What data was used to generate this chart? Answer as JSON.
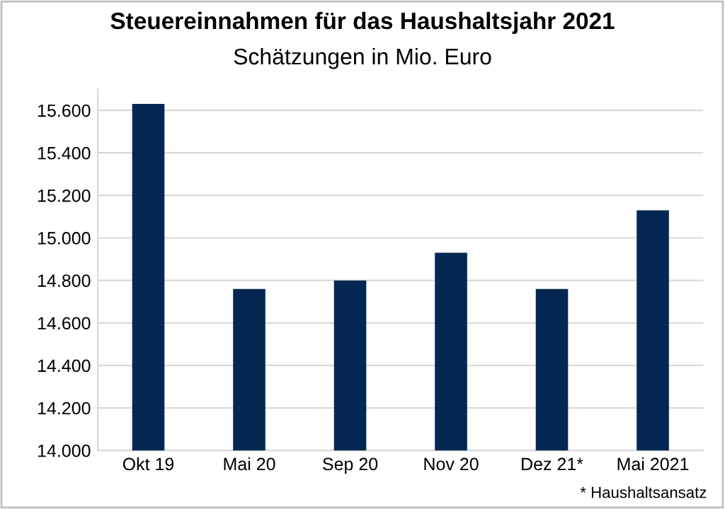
{
  "chart_data": {
    "type": "bar",
    "title": "Steuereinnahmen für das Haushaltsjahr 2021",
    "subtitle": "Schätzungen in Mio. Euro",
    "categories": [
      "Okt 19",
      "Mai 20",
      "Sep 20",
      "Nov 20",
      "Dez 21*",
      "Mai 2021"
    ],
    "values": [
      15630,
      14760,
      14800,
      14930,
      14760,
      15130
    ],
    "color": "#042851",
    "ylim": [
      14000,
      15700
    ],
    "yticks": [
      {
        "value": 14000,
        "label": "14.000"
      },
      {
        "value": 14200,
        "label": "14.200"
      },
      {
        "value": 14400,
        "label": "14.400"
      },
      {
        "value": 14600,
        "label": "14.600"
      },
      {
        "value": 14800,
        "label": "14.800"
      },
      {
        "value": 15000,
        "label": "15.000"
      },
      {
        "value": 15200,
        "label": "15.200"
      },
      {
        "value": 15400,
        "label": "15.400"
      },
      {
        "value": 15600,
        "label": "15.600"
      }
    ],
    "grid": "y",
    "annotations": [
      "* Haushaltsansatz"
    ]
  }
}
